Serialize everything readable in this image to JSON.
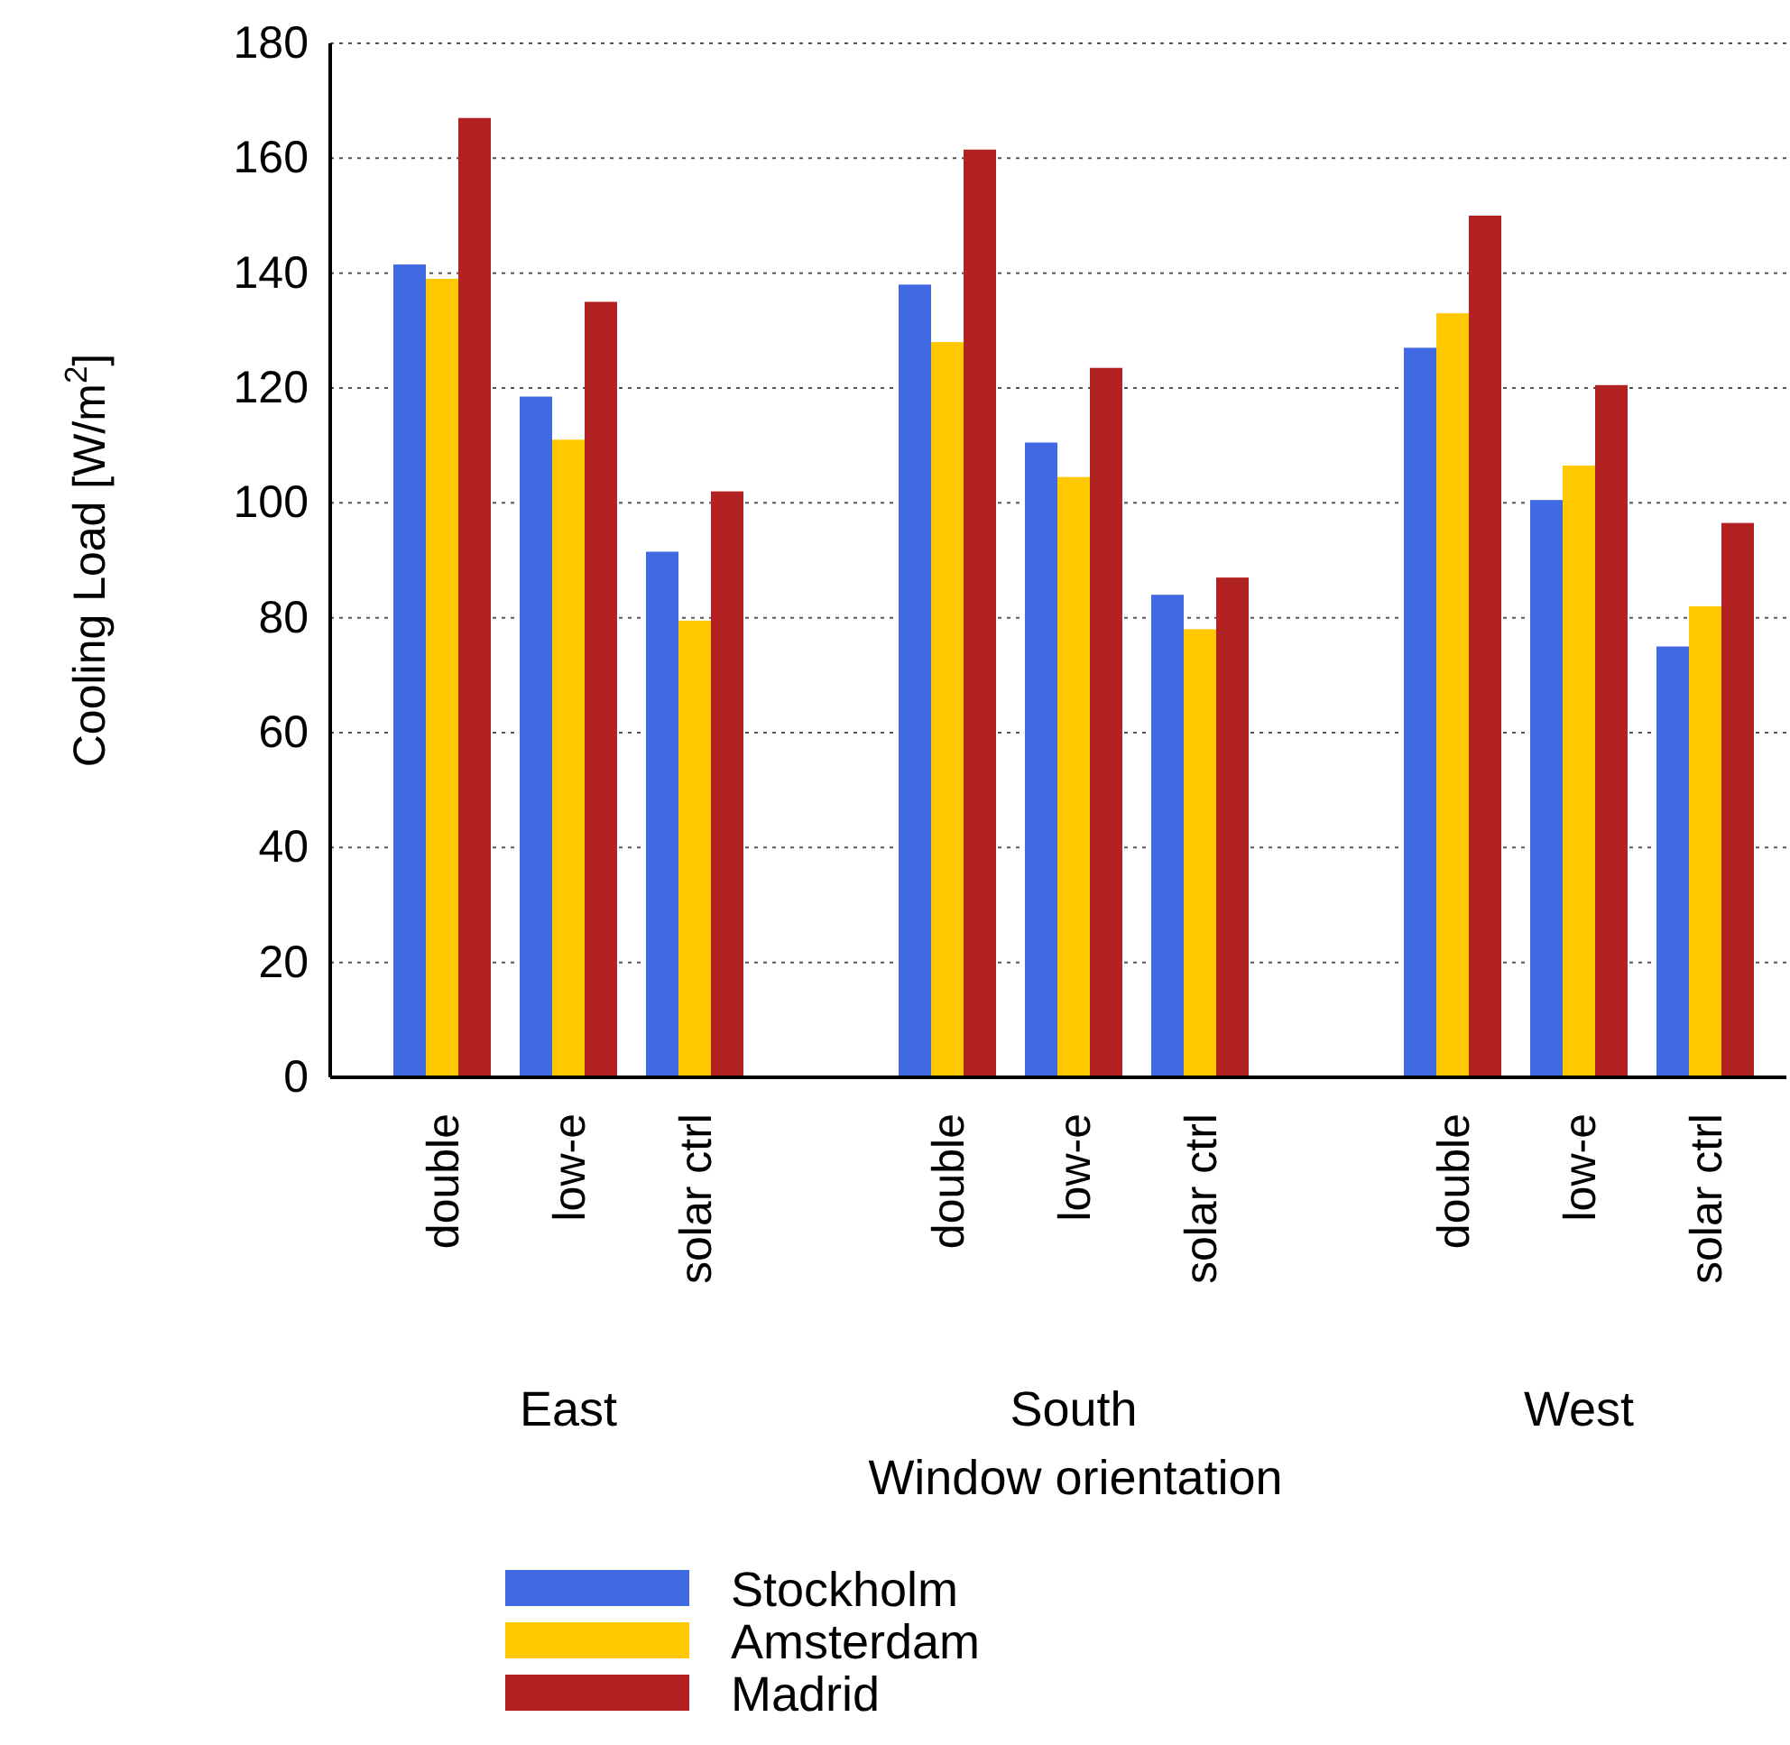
{
  "chart_data": {
    "type": "bar",
    "xlabel": "Window orientation",
    "ylabel": "Cooling Load [W/m$^{2}$]",
    "categories": [
      "double",
      "low-e",
      "solar ctrl",
      null,
      "double",
      "low-e",
      "solar ctrl",
      null,
      "double",
      "low-e",
      "solar ctrl"
    ],
    "annotations": [
      "East",
      "South",
      "West"
    ],
    "series": [
      {
        "name": "Stockholm",
        "color": "#4169e1",
        "values": [
          141.5,
          118.5,
          91.5,
          null,
          138,
          110.5,
          84,
          null,
          127,
          100.5,
          75
        ]
      },
      {
        "name": "Amsterdam",
        "color": "#ffc800",
        "values": [
          139,
          111,
          79.5,
          null,
          128,
          104.5,
          78,
          null,
          133,
          106.5,
          82
        ]
      },
      {
        "name": "Madrid",
        "color": "#b22222",
        "values": [
          167,
          135,
          102,
          null,
          161.5,
          123.5,
          87,
          null,
          150,
          120.5,
          96.5
        ]
      }
    ],
    "ylim": [
      0,
      180
    ],
    "yticks": [
      0,
      20,
      40,
      60,
      80,
      100,
      120,
      140,
      160,
      180
    ],
    "grid": "y",
    "legend": "bottom"
  }
}
